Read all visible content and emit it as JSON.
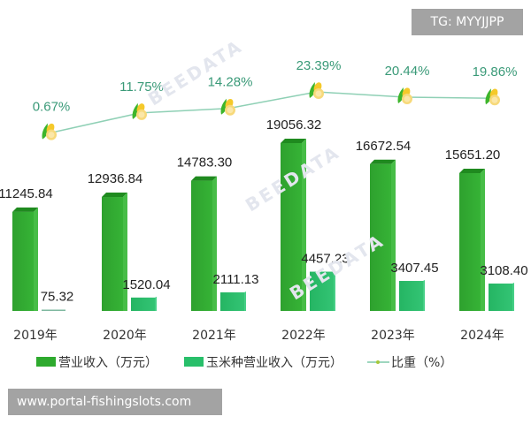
{
  "chart_data": {
    "type": "bar",
    "title": "",
    "xlabel": "",
    "ylabel": "",
    "categories": [
      "2019年",
      "2020年",
      "2021年",
      "2022年",
      "2023年",
      "2024年"
    ],
    "series": [
      {
        "name": "营业收入（万元）",
        "type": "bar",
        "color": "#2eaa2e",
        "values": [
          11245.84,
          12936.84,
          14783.3,
          19056.32,
          16672.54,
          15651.2
        ]
      },
      {
        "name": "玉米种营业收入（万元）",
        "type": "bar",
        "color": "#28bf6a",
        "values": [
          75.32,
          1520.04,
          2111.13,
          4457.23,
          3407.45,
          3108.4
        ]
      },
      {
        "name": "比重（%）",
        "type": "line",
        "color": "#7fc8a9",
        "values": [
          0.67,
          11.75,
          14.28,
          23.39,
          20.44,
          19.86
        ],
        "labels": [
          "0.67%",
          "11.75%",
          "14.28%",
          "23.39%",
          "20.44%",
          "19.86%"
        ]
      }
    ],
    "bar_labels": {
      "revenue": [
        "11245.84",
        "12936.84",
        "14783.30",
        "19056.32",
        "16672.54",
        "15651.20"
      ],
      "corn": [
        "75.32",
        "1520.04",
        "2111.13",
        "4457.23",
        "3407.45",
        "3108.40"
      ]
    },
    "grid": false,
    "legend_position": "bottom"
  },
  "legend": [
    {
      "label": "营业收入（万元）",
      "color": "#2eaa2e"
    },
    {
      "label": "玉米种营业收入（万元）",
      "color": "#28bf6a"
    },
    {
      "label": "比重（%）",
      "color": "#7fc8a9"
    }
  ],
  "overlays": {
    "tg_badge": "TG: MYYJJPP",
    "url_badge": "www.portal-fishingslots.com"
  },
  "watermarks": [
    "BEEDATA",
    "BEEDATA",
    "BEEDATA"
  ]
}
